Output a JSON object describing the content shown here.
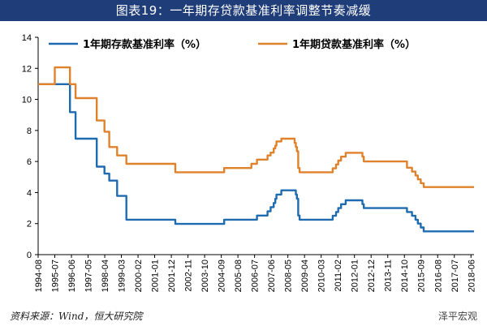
{
  "title": "图表19：一年期存贷款基准利率调整节奏减缓",
  "source": "资料来源：Wind，恒大研究院",
  "watermark": "泽平宏观",
  "chart_data": {
    "type": "line",
    "ylim": [
      0,
      14
    ],
    "yticks": [
      0,
      2,
      4,
      6,
      8,
      10,
      12,
      14
    ],
    "xlim": [
      1994.583,
      2018.583
    ],
    "xtick_labels": [
      "1994-08",
      "1995-07",
      "1996-06",
      "1997-05",
      "1998-04",
      "1999-03",
      "2000-02",
      "2001-01",
      "2001-12",
      "2002-11",
      "2003-10",
      "2004-09",
      "2005-08",
      "2006-07",
      "2007-06",
      "2008-05",
      "2009-04",
      "2010-03",
      "2011-02",
      "2012-01",
      "2012-12",
      "2013-11",
      "2014-10",
      "2015-09",
      "2016-08",
      "2017-07",
      "2018-06"
    ],
    "legend_position": "top",
    "grid": false,
    "series": [
      {
        "name": "1年期存款基准利率（%）",
        "color": "#1f6bb0",
        "x": [
          "1994-08",
          "1996-05-01",
          "1996-08-23",
          "1997-10-23",
          "1998-03-25",
          "1998-07-01",
          "1998-12-07",
          "1999-06-10",
          "2002-02-21",
          "2004-10-29",
          "2006-08-19",
          "2007-03-18",
          "2007-05-19",
          "2007-07-21",
          "2007-08-22",
          "2007-09-15",
          "2007-12-21",
          "2008-10-09",
          "2008-10-30",
          "2008-11-27",
          "2008-12-23",
          "2010-10-20",
          "2010-12-26",
          "2011-02-09",
          "2011-04-06",
          "2011-07-07",
          "2012-06-08",
          "2012-07-06",
          "2014-11-22",
          "2015-03-01",
          "2015-05-11",
          "2015-06-28",
          "2015-08-26",
          "2015-10-24",
          "2018-08"
        ],
        "values": [
          10.98,
          9.18,
          7.47,
          5.67,
          5.22,
          4.77,
          3.78,
          2.25,
          1.98,
          2.25,
          2.52,
          2.79,
          3.06,
          3.33,
          3.6,
          3.87,
          4.14,
          3.87,
          3.6,
          2.52,
          2.25,
          2.5,
          2.75,
          3.0,
          3.25,
          3.5,
          3.25,
          3.0,
          2.75,
          2.5,
          2.25,
          2.0,
          1.75,
          1.5,
          1.5
        ]
      },
      {
        "name": "1年期贷款基准利率（%）",
        "color": "#e0822b",
        "x": [
          "1994-08",
          "1995-01-01",
          "1995-07-01",
          "1996-05-01",
          "1996-08-23",
          "1997-10-23",
          "1998-03-25",
          "1998-07-01",
          "1998-12-07",
          "1999-06-10",
          "2002-02-21",
          "2004-10-29",
          "2006-04-28",
          "2006-08-19",
          "2007-03-18",
          "2007-05-19",
          "2007-07-21",
          "2007-08-22",
          "2007-09-15",
          "2007-12-21",
          "2008-09-16",
          "2008-10-09",
          "2008-10-30",
          "2008-11-27",
          "2008-12-23",
          "2010-10-20",
          "2010-12-26",
          "2011-02-09",
          "2011-04-06",
          "2011-07-07",
          "2012-06-08",
          "2012-07-06",
          "2014-11-22",
          "2015-03-01",
          "2015-05-11",
          "2015-06-28",
          "2015-08-26",
          "2015-10-24",
          "2018-08"
        ],
        "values": [
          10.98,
          10.98,
          12.06,
          10.98,
          10.08,
          8.64,
          7.92,
          6.93,
          6.39,
          5.85,
          5.31,
          5.58,
          5.85,
          6.12,
          6.39,
          6.57,
          6.84,
          7.02,
          7.29,
          7.47,
          7.2,
          6.93,
          6.66,
          5.58,
          5.31,
          5.56,
          5.81,
          6.06,
          6.31,
          6.56,
          6.31,
          6.0,
          5.6,
          5.35,
          5.1,
          4.85,
          4.6,
          4.35,
          4.35
        ]
      }
    ]
  }
}
